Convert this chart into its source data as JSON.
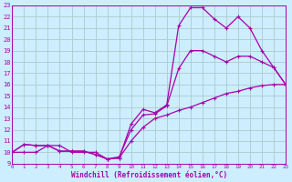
{
  "bg_color": "#cceeff",
  "grid_color": "#aacccc",
  "line_color": "#aa00aa",
  "xlabel": "Windchill (Refroidissement éolien,°C)",
  "xlim": [
    0,
    23
  ],
  "ylim": [
    9,
    23
  ],
  "yticks": [
    9,
    10,
    11,
    12,
    13,
    14,
    15,
    16,
    17,
    18,
    19,
    20,
    21,
    22,
    23
  ],
  "xticks": [
    0,
    1,
    2,
    3,
    4,
    5,
    6,
    7,
    8,
    9,
    10,
    11,
    12,
    13,
    14,
    15,
    16,
    17,
    18,
    19,
    20,
    21,
    22,
    23
  ],
  "series1_x": [
    0,
    1,
    2,
    3,
    4,
    5,
    6,
    7,
    8,
    9,
    10,
    11,
    12,
    13,
    14,
    15,
    16,
    17,
    18,
    19,
    20,
    21,
    22,
    23
  ],
  "series1_y": [
    10,
    10.7,
    10.6,
    10.6,
    10.1,
    10.1,
    10.1,
    9.8,
    9.4,
    9.5,
    11.0,
    12.2,
    13.0,
    13.3,
    13.7,
    14.0,
    14.4,
    14.8,
    15.2,
    15.4,
    15.7,
    15.9,
    16.0,
    16.0
  ],
  "series2_x": [
    0,
    1,
    2,
    3,
    4,
    5,
    6,
    7,
    8,
    9,
    10,
    11,
    12,
    13,
    14,
    15,
    16,
    17,
    18,
    19,
    20,
    21,
    22,
    23
  ],
  "series2_y": [
    10,
    10.0,
    10.0,
    10.6,
    10.6,
    10.0,
    10.0,
    10.0,
    9.4,
    9.6,
    12.0,
    13.3,
    13.4,
    14.1,
    17.4,
    19.0,
    19.0,
    18.5,
    18.0,
    18.5,
    18.5,
    18.0,
    17.5,
    16.0
  ],
  "series3_x": [
    0,
    1,
    2,
    3,
    4,
    5,
    6,
    7,
    8,
    9,
    10,
    11,
    12,
    13,
    14,
    15,
    16,
    17,
    18,
    19,
    20,
    21,
    22,
    23
  ],
  "series3_y": [
    10,
    10.7,
    10.6,
    10.6,
    10.1,
    10.1,
    10.1,
    9.8,
    9.4,
    9.5,
    12.5,
    13.8,
    13.5,
    14.2,
    21.2,
    22.8,
    22.8,
    21.8,
    21.0,
    22.0,
    21.0,
    19.0,
    17.5,
    16.0
  ]
}
